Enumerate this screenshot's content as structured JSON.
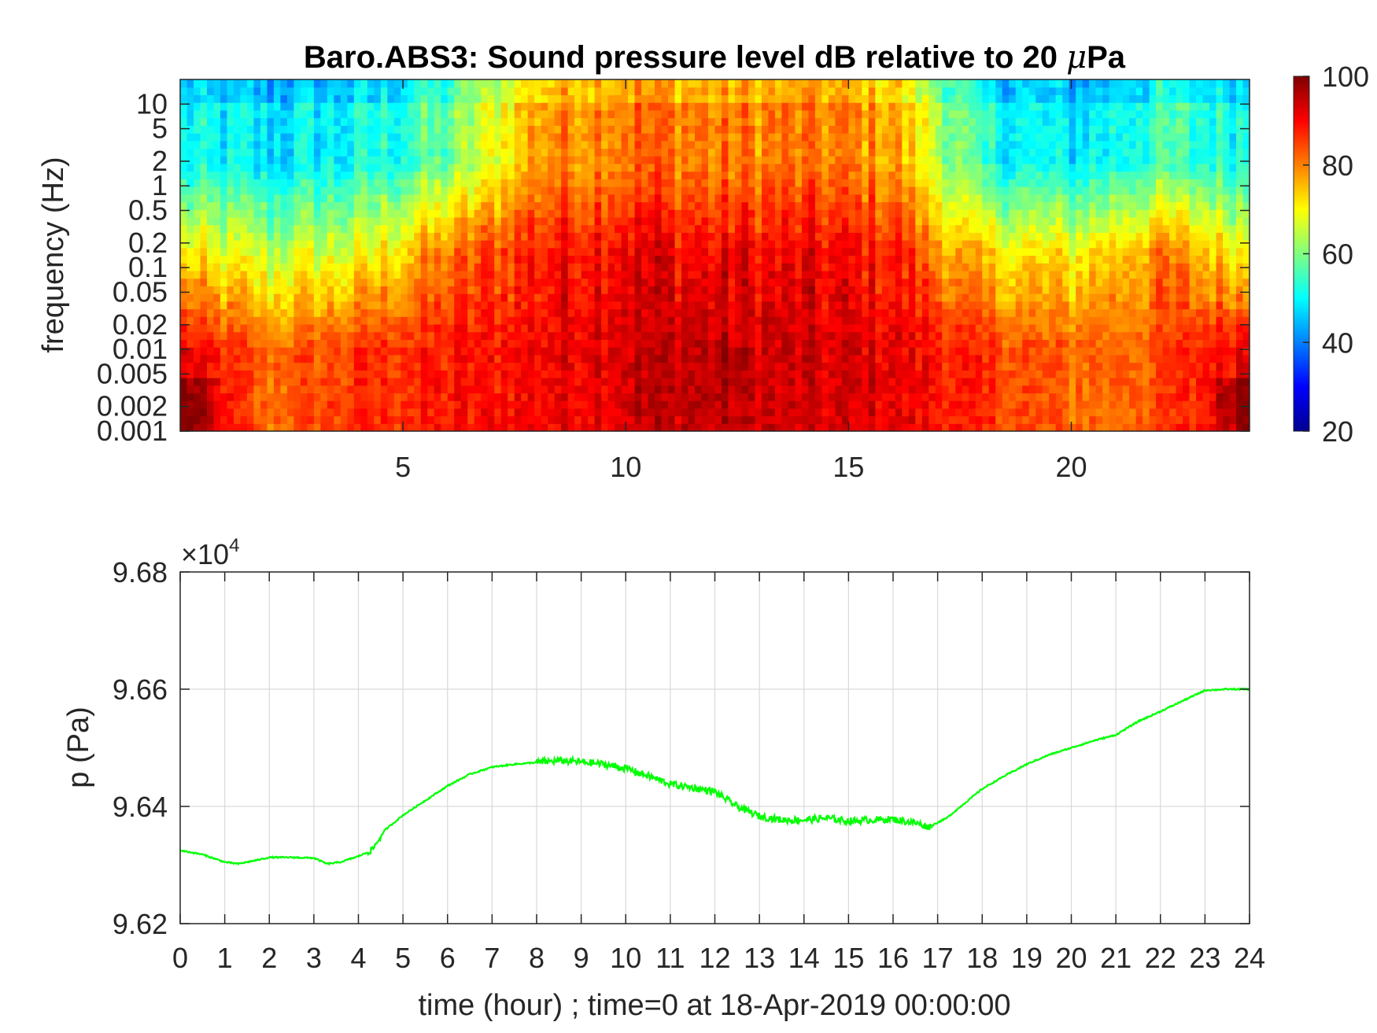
{
  "chart_data": [
    {
      "type": "heatmap",
      "title_main": "Baro.ABS3: Sound pressure level dB relative to 20 ",
      "title_mu": "μ",
      "title_end": "Pa",
      "ylabel": "frequency (Hz)",
      "xlabel": "",
      "xlim": [
        0,
        24
      ],
      "x_ticks": [
        5,
        10,
        15,
        20
      ],
      "x_tick_labels": [
        "5",
        "10",
        "15",
        "20"
      ],
      "y_scale": "log",
      "ylim": [
        0.001,
        20
      ],
      "y_ticks": [
        0.001,
        0.002,
        0.005,
        0.01,
        0.02,
        0.05,
        0.1,
        0.2,
        0.5,
        1,
        2,
        5,
        10
      ],
      "y_tick_labels": [
        "0.001",
        "0.002",
        "0.005",
        "0.01",
        "0.02",
        "0.05",
        "0.1",
        "0.2",
        "0.5",
        "1",
        "2",
        "5",
        "10"
      ],
      "colormap": "jet",
      "colorbar": {
        "clim": [
          20,
          100
        ],
        "ticks": [
          20,
          40,
          60,
          80,
          100
        ],
        "tick_labels": [
          "20",
          "40",
          "60",
          "80",
          "100"
        ]
      },
      "approx_levels_db": {
        "note_time_hours": [
          0,
          2,
          4,
          6,
          8,
          10,
          12,
          14,
          16,
          18,
          20,
          22,
          24
        ],
        "low_freq_band_0.001_0.01Hz": [
          92,
          82,
          86,
          88,
          90,
          94,
          95,
          93,
          92,
          86,
          82,
          84,
          92
        ],
        "mid_band_0.05_0.5Hz": [
          70,
          65,
          68,
          80,
          88,
          92,
          90,
          90,
          88,
          72,
          70,
          80,
          70
        ],
        "high_band_2_10Hz": [
          50,
          48,
          50,
          58,
          78,
          82,
          80,
          80,
          78,
          52,
          48,
          55,
          52
        ]
      }
    },
    {
      "type": "line",
      "exponent_label_base": "×10",
      "exponent_label_power": "4",
      "ylabel": "p (Pa)",
      "xlabel": "time (hour) ; time=0 at 18-Apr-2019 00:00:00",
      "xlim": [
        0,
        24
      ],
      "ylim": [
        96200,
        96800
      ],
      "x_ticks": [
        0,
        1,
        2,
        3,
        4,
        5,
        6,
        7,
        8,
        9,
        10,
        11,
        12,
        13,
        14,
        15,
        16,
        17,
        18,
        19,
        20,
        21,
        22,
        23,
        24
      ],
      "x_tick_labels": [
        "0",
        "1",
        "2",
        "3",
        "4",
        "5",
        "6",
        "7",
        "8",
        "9",
        "10",
        "11",
        "12",
        "13",
        "14",
        "15",
        "16",
        "17",
        "18",
        "19",
        "20",
        "21",
        "22",
        "23",
        "24"
      ],
      "y_ticks": [
        96200,
        96400,
        96600,
        96800
      ],
      "y_tick_labels": [
        "9.62",
        "9.64",
        "9.66",
        "9.68"
      ],
      "grid": true,
      "line_color": "#00ff00",
      "series": [
        {
          "x": [
            0,
            0.5,
            1,
            1.3,
            1.7,
            2,
            2.5,
            3,
            3.3,
            3.6,
            4,
            4.3,
            4.6,
            5,
            5.5,
            6,
            6.5,
            7,
            7.5,
            8,
            8.5,
            9,
            9.5,
            10,
            10.5,
            11,
            11.5,
            12,
            12.5,
            13,
            13.5,
            14,
            14.5,
            15,
            15.5,
            16,
            16.5,
            16.8,
            17.2,
            17.6,
            18,
            18.5,
            19,
            19.5,
            20,
            20.5,
            21,
            21.5,
            22,
            22.5,
            23,
            23.5,
            24
          ],
          "y": [
            96325,
            96318,
            96305,
            96302,
            96308,
            96313,
            96313,
            96312,
            96302,
            96305,
            96315,
            96325,
            96360,
            96385,
            96410,
            96435,
            96455,
            96467,
            96472,
            96475,
            96478,
            96476,
            96472,
            96465,
            96452,
            96438,
            96432,
            96425,
            96400,
            96383,
            96377,
            96377,
            96380,
            96375,
            96377,
            96378,
            96372,
            96365,
            96380,
            96405,
            96430,
            96452,
            96472,
            96488,
            96500,
            96512,
            96522,
            96545,
            96562,
            96580,
            96598,
            96600,
            96600
          ]
        }
      ]
    }
  ]
}
